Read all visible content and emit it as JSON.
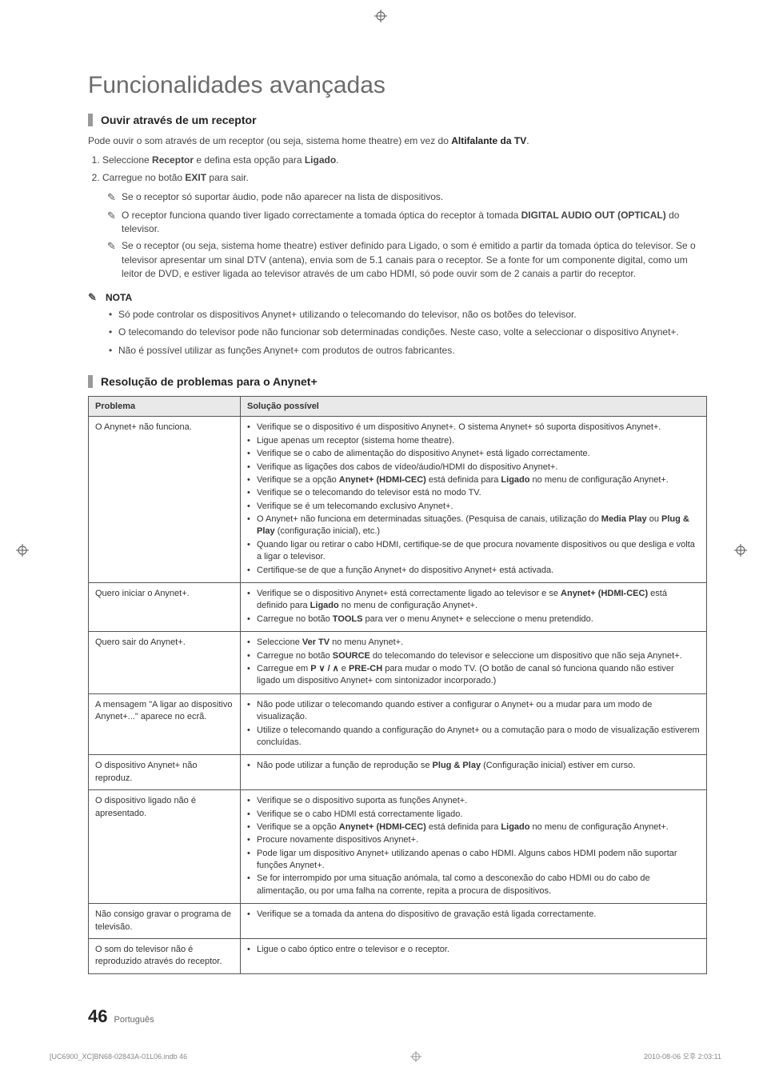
{
  "title": "Funcionalidades avançadas",
  "sections": {
    "receiver": {
      "heading": "Ouvir através de um receptor",
      "intro_pre": "Pode ouvir o som através de um receptor (ou seja, sistema home theatre) em vez do ",
      "intro_bold": "Altifalante da TV",
      "intro_post": ".",
      "step1_pre": "Seleccione ",
      "step1_b1": "Receptor",
      "step1_mid": " e defina esta opção para ",
      "step1_b2": "Ligado",
      "step1_post": ".",
      "step2_pre": "Carregue no botão ",
      "step2_b": "EXIT",
      "step2_post": " para sair.",
      "note1": "Se o receptor só suportar áudio, pode não aparecer na lista de dispositivos.",
      "note2_pre": "O receptor funciona quando tiver ligado correctamente a tomada óptica do receptor à tomada ",
      "note2_b": "DIGITAL AUDIO OUT (OPTICAL)",
      "note2_post": " do televisor.",
      "note3": "Se o receptor (ou seja, sistema home theatre) estiver definido para Ligado, o som é emitido a partir da tomada óptica do televisor. Se o televisor apresentar um sinal DTV (antena), envia som de 5.1 canais para o receptor. Se a fonte for um componente digital, como um leitor de DVD, e estiver ligada ao televisor através de um cabo HDMI, só pode ouvir som de 2 canais a partir do receptor."
    },
    "nota": {
      "label": "NOTA",
      "b1": "Só pode controlar os dispositivos Anynet+ utilizando o telecomando do televisor, não os botões do televisor.",
      "b2": "O telecomando do televisor pode não funcionar sob determinadas condições. Neste caso, volte a seleccionar o dispositivo Anynet+.",
      "b3": "Não é possível utilizar as funções Anynet+ com produtos de outros fabricantes."
    },
    "trouble": {
      "heading": "Resolução de problemas para o Anynet+",
      "col1": "Problema",
      "col2": "Solução possível",
      "rows": [
        {
          "problem": "O Anynet+ não funciona.",
          "sol": [
            "Verifique se o dispositivo é um dispositivo Anynet+. O sistema Anynet+ só suporta dispositivos Anynet+.",
            "Ligue apenas um receptor (sistema home theatre).",
            "Verifique se o cabo de alimentação do dispositivo Anynet+ está ligado correctamente.",
            "Verifique as ligações dos cabos de vídeo/áudio/HDMI do dispositivo Anynet+.",
            "Verifique se a opção <strong>Anynet+ (HDMI-CEC)</strong> está definida para <strong>Ligado</strong> no menu de configuração Anynet+.",
            "Verifique se o telecomando do televisor está no modo TV.",
            "Verifique se é um telecomando exclusivo Anynet+.",
            "O Anynet+ não funciona em determinadas situações. (Pesquisa de canais, utilização do <strong>Media Play</strong> ou <strong>Plug & Play</strong> (configuração inicial), etc.)",
            "Quando ligar ou retirar o cabo HDMI, certifique-se de que procura novamente dispositivos ou que desliga e volta a ligar o televisor.",
            "Certifique-se de que a função Anynet+ do dispositivo Anynet+ está activada."
          ]
        },
        {
          "problem": "Quero iniciar o Anynet+.",
          "sol": [
            "Verifique se o dispositivo Anynet+ está correctamente ligado ao televisor e se <strong>Anynet+ (HDMI-CEC)</strong> está definido para <strong>Ligado</strong> no menu de configuração Anynet+.",
            "Carregue no botão <strong>TOOLS</strong> para ver o menu Anynet+ e seleccione o menu pretendido."
          ]
        },
        {
          "problem": "Quero sair do Anynet+.",
          "sol": [
            "Seleccione <strong>Ver TV</strong> no menu Anynet+.",
            "Carregue no botão <strong>SOURCE</strong> do telecomando do televisor e seleccione um dispositivo que não seja Anynet+.",
            "Carregue em <strong>P ∨ / ∧</strong> e <strong>PRE-CH</strong> para mudar o modo TV. (O botão de canal só funciona quando não estiver ligado um dispositivo Anynet+ com sintonizador incorporado.)"
          ]
        },
        {
          "problem": "A mensagem \"A ligar ao dispositivo Anynet+...\" aparece no ecrã.",
          "sol": [
            "Não pode utilizar o telecomando quando estiver a configurar o Anynet+ ou a mudar para um modo de visualização.",
            "Utilize o telecomando quando a configuração do Anynet+ ou a comutação para o modo de visualização estiverem concluídas."
          ]
        },
        {
          "problem": "O dispositivo Anynet+ não reproduz.",
          "sol": [
            "Não pode utilizar a função de reprodução se <strong>Plug & Play</strong> (Configuração inicial) estiver em curso."
          ]
        },
        {
          "problem": "O dispositivo ligado não é apresentado.",
          "sol": [
            "Verifique se o dispositivo suporta as funções Anynet+.",
            "Verifique se o cabo HDMI está correctamente ligado.",
            "Verifique se a opção <strong>Anynet+ (HDMI-CEC)</strong> está definida para <strong>Ligado</strong> no menu de configuração Anynet+.",
            "Procure novamente dispositivos Anynet+.",
            "Pode ligar um dispositivo Anynet+ utilizando apenas o cabo HDMI. Alguns cabos HDMI podem não suportar funções Anynet+.",
            "Se for interrompido por uma situação anómala, tal como a desconexão do cabo HDMI ou do cabo de alimentação, ou por uma falha na corrente, repita a procura de dispositivos."
          ]
        },
        {
          "problem": "Não consigo gravar o programa de televisão.",
          "sol": [
            "Verifique se a tomada da antena do dispositivo de gravação está ligada correctamente."
          ]
        },
        {
          "problem": "O som do televisor não é reproduzido através do receptor.",
          "sol": [
            "Ligue o cabo óptico entre o televisor e o receptor."
          ]
        }
      ]
    }
  },
  "footer": {
    "page_num": "46",
    "lang": "Português",
    "file": "[UC6900_XC]BN68-02843A-01L06.indb   46",
    "timestamp": "2010-08-06   오후 2:03:11"
  }
}
